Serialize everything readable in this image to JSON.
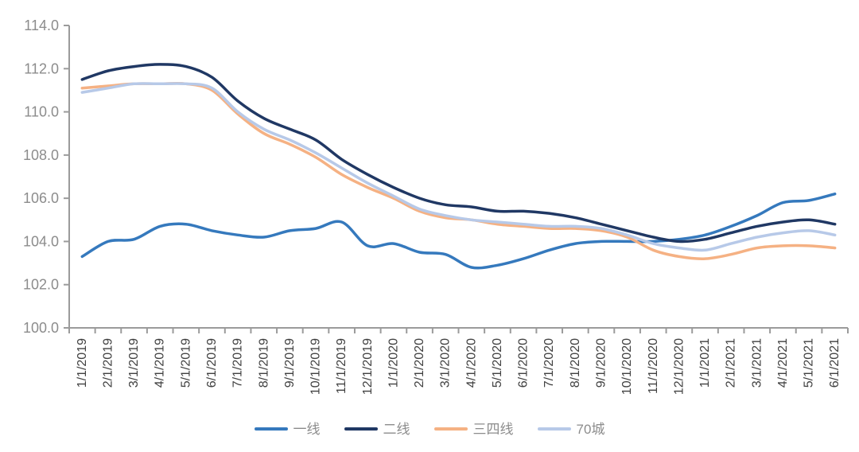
{
  "chart_data": {
    "type": "line",
    "title": "",
    "xlabel": "",
    "ylabel": "",
    "smooth": true,
    "grid": false,
    "legend_position": "bottom",
    "background_color": "#ffffff",
    "axis_color": "#9b9b9b",
    "ytick_label_color": "#8c8c8c",
    "xtick_label_color": "#404040",
    "legend_text_color": "#8c8c8c",
    "ylim": [
      100,
      114
    ],
    "ytick_labels": [
      "100.0",
      "102.0",
      "104.0",
      "106.0",
      "108.0",
      "110.0",
      "112.0",
      "114.0"
    ],
    "x": [
      "1/1/2019",
      "2/1/2019",
      "3/1/2019",
      "4/1/2019",
      "5/1/2019",
      "6/1/2019",
      "7/1/2019",
      "8/1/2019",
      "9/1/2019",
      "10/1/2019",
      "11/1/2019",
      "12/1/2019",
      "1/1/2020",
      "2/1/2020",
      "3/1/2020",
      "4/1/2020",
      "5/1/2020",
      "6/1/2020",
      "7/1/2020",
      "8/1/2020",
      "9/1/2020",
      "10/1/2020",
      "11/1/2020",
      "12/1/2020",
      "1/1/2021",
      "2/1/2021",
      "3/1/2021",
      "4/1/2021",
      "5/1/2021",
      "6/1/2021"
    ],
    "series": [
      {
        "name": "一线",
        "color": "#3579bd",
        "values": [
          103.3,
          104.0,
          104.1,
          104.7,
          104.8,
          104.5,
          104.3,
          104.2,
          104.5,
          104.6,
          104.9,
          103.8,
          103.9,
          103.5,
          103.4,
          102.8,
          102.9,
          103.2,
          103.6,
          103.9,
          104.0,
          104.0,
          104.0,
          104.1,
          104.3,
          104.7,
          105.2,
          105.8,
          105.9,
          106.2
        ]
      },
      {
        "name": "二线",
        "color": "#203864",
        "values": [
          111.5,
          111.9,
          112.1,
          112.2,
          112.1,
          111.6,
          110.5,
          109.7,
          109.2,
          108.7,
          107.8,
          107.1,
          106.5,
          106.0,
          105.7,
          105.6,
          105.4,
          105.4,
          105.3,
          105.1,
          104.8,
          104.5,
          104.2,
          104.0,
          104.1,
          104.4,
          104.7,
          104.9,
          105.0,
          104.8
        ]
      },
      {
        "name": "三四线",
        "color": "#f5b183",
        "values": [
          111.1,
          111.2,
          111.3,
          111.3,
          111.3,
          111.0,
          109.9,
          109.0,
          108.5,
          107.9,
          107.1,
          106.5,
          106.0,
          105.4,
          105.1,
          105.0,
          104.8,
          104.7,
          104.6,
          104.6,
          104.5,
          104.2,
          103.6,
          103.3,
          103.2,
          103.4,
          103.7,
          103.8,
          103.8,
          103.7
        ]
      },
      {
        "name": "70城",
        "color": "#b7c9e8",
        "values": [
          110.9,
          111.1,
          111.3,
          111.3,
          111.3,
          111.1,
          110.0,
          109.2,
          108.7,
          108.1,
          107.4,
          106.7,
          106.1,
          105.5,
          105.2,
          105.0,
          104.9,
          104.8,
          104.7,
          104.7,
          104.6,
          104.3,
          103.9,
          103.7,
          103.6,
          103.9,
          104.2,
          104.4,
          104.5,
          104.3
        ]
      }
    ]
  }
}
